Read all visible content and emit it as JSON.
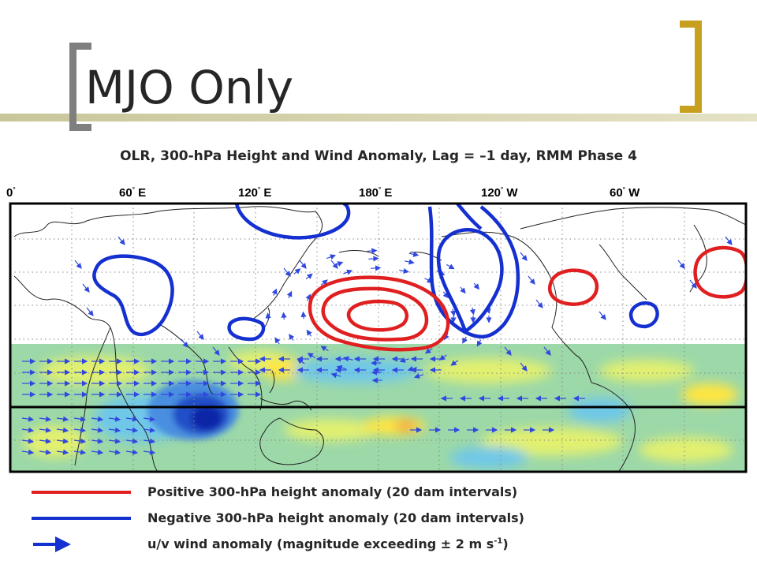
{
  "slide": {
    "title": "MJO Only",
    "plot_title": "OLR, 300-hPa Height and Wind Anomaly, Lag = –1 day, RMM Phase 4",
    "accent_bar_color": "#d6d4b0",
    "left_bracket_color": "#7f7f7f",
    "right_bracket_color": "#c8a020"
  },
  "map": {
    "longitude_labels": [
      {
        "deg": "0",
        "hemi": ""
      },
      {
        "deg": "60",
        "hemi": "E"
      },
      {
        "deg": "120",
        "hemi": "E"
      },
      {
        "deg": "180",
        "hemi": "E"
      },
      {
        "deg": "120",
        "hemi": "W"
      },
      {
        "deg": "60",
        "hemi": "W"
      }
    ],
    "degree_symbol": "°",
    "positive_contour_color": "#e02020",
    "negative_contour_color": "#1530d0",
    "wind_vector_color": "#3048e0"
  },
  "legend": {
    "positive": {
      "text": "Positive 300-hPa height anomaly (20 dam intervals)",
      "color": "#e02020"
    },
    "negative": {
      "text": "Negative 300-hPa height anomaly (20 dam intervals)",
      "color": "#1530d0"
    },
    "wind": {
      "text_main": "u/v wind anomaly (magnitude exceeding ± 2 m s",
      "superscript": "-1",
      "text_end": ")",
      "color": "#1530d0"
    }
  }
}
